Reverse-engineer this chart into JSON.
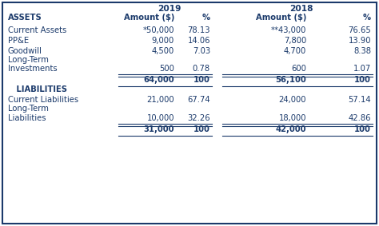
{
  "color": "#1b3a6b",
  "bg": "#ffffff",
  "header_2019": "2019",
  "header_2018": "2018",
  "figsize": [
    4.74,
    2.83
  ],
  "dpi": 100,
  "rows": [
    {
      "label": "ASSETS",
      "amt19": "Amount ($)",
      "pct19": "%",
      "amt18": "Amount ($)",
      "pct18": "%",
      "bold": true,
      "is_header": true,
      "is_section": false,
      "underline": false,
      "total": false
    },
    {
      "label": "Current Assets",
      "amt19": "*50,000",
      "pct19": "78.13",
      "amt18": "**43,000",
      "pct18": "76.65",
      "bold": false,
      "is_header": false,
      "is_section": false,
      "underline": false,
      "total": false
    },
    {
      "label": "PP&E",
      "amt19": "9,000",
      "pct19": "14.06",
      "amt18": "7,800",
      "pct18": "13.90",
      "bold": false,
      "is_header": false,
      "is_section": false,
      "underline": false,
      "total": false
    },
    {
      "label": "Goodwill",
      "amt19": "4,500",
      "pct19": "7.03",
      "amt18": "4,700",
      "pct18": "8.38",
      "bold": false,
      "is_header": false,
      "is_section": false,
      "underline": false,
      "total": false
    },
    {
      "label": "Long-Term",
      "amt19": "",
      "pct19": "",
      "amt18": "",
      "pct18": "",
      "bold": false,
      "is_header": false,
      "is_section": false,
      "underline": false,
      "total": false
    },
    {
      "label": "Investments",
      "amt19": "500",
      "pct19": "0.78",
      "amt18": "600",
      "pct18": "1.07",
      "bold": false,
      "is_header": false,
      "is_section": false,
      "underline": true,
      "total": false
    },
    {
      "label": "",
      "amt19": "64,000",
      "pct19": "100",
      "amt18": "56,100",
      "pct18": "100",
      "bold": true,
      "is_header": false,
      "is_section": false,
      "underline": true,
      "total": true
    },
    {
      "label": "   LIABILITIES",
      "amt19": "",
      "pct19": "",
      "amt18": "",
      "pct18": "",
      "bold": true,
      "is_header": false,
      "is_section": true,
      "underline": false,
      "total": false
    },
    {
      "label": "Current Liabilities",
      "amt19": "21,000",
      "pct19": "67.74",
      "amt18": "24,000",
      "pct18": "57.14",
      "bold": false,
      "is_header": false,
      "is_section": false,
      "underline": false,
      "total": false
    },
    {
      "label": "Long-Term",
      "amt19": "",
      "pct19": "",
      "amt18": "",
      "pct18": "",
      "bold": false,
      "is_header": false,
      "is_section": false,
      "underline": false,
      "total": false
    },
    {
      "label": "Liabilities",
      "amt19": "10,000",
      "pct19": "32.26",
      "amt18": "18,000",
      "pct18": "42.86",
      "bold": false,
      "is_header": false,
      "is_section": false,
      "underline": true,
      "total": false
    },
    {
      "label": "",
      "amt19": "31,000",
      "pct19": "100",
      "amt18": "42,000",
      "pct18": "100",
      "bold": true,
      "is_header": false,
      "is_section": false,
      "underline": true,
      "total": true
    }
  ]
}
